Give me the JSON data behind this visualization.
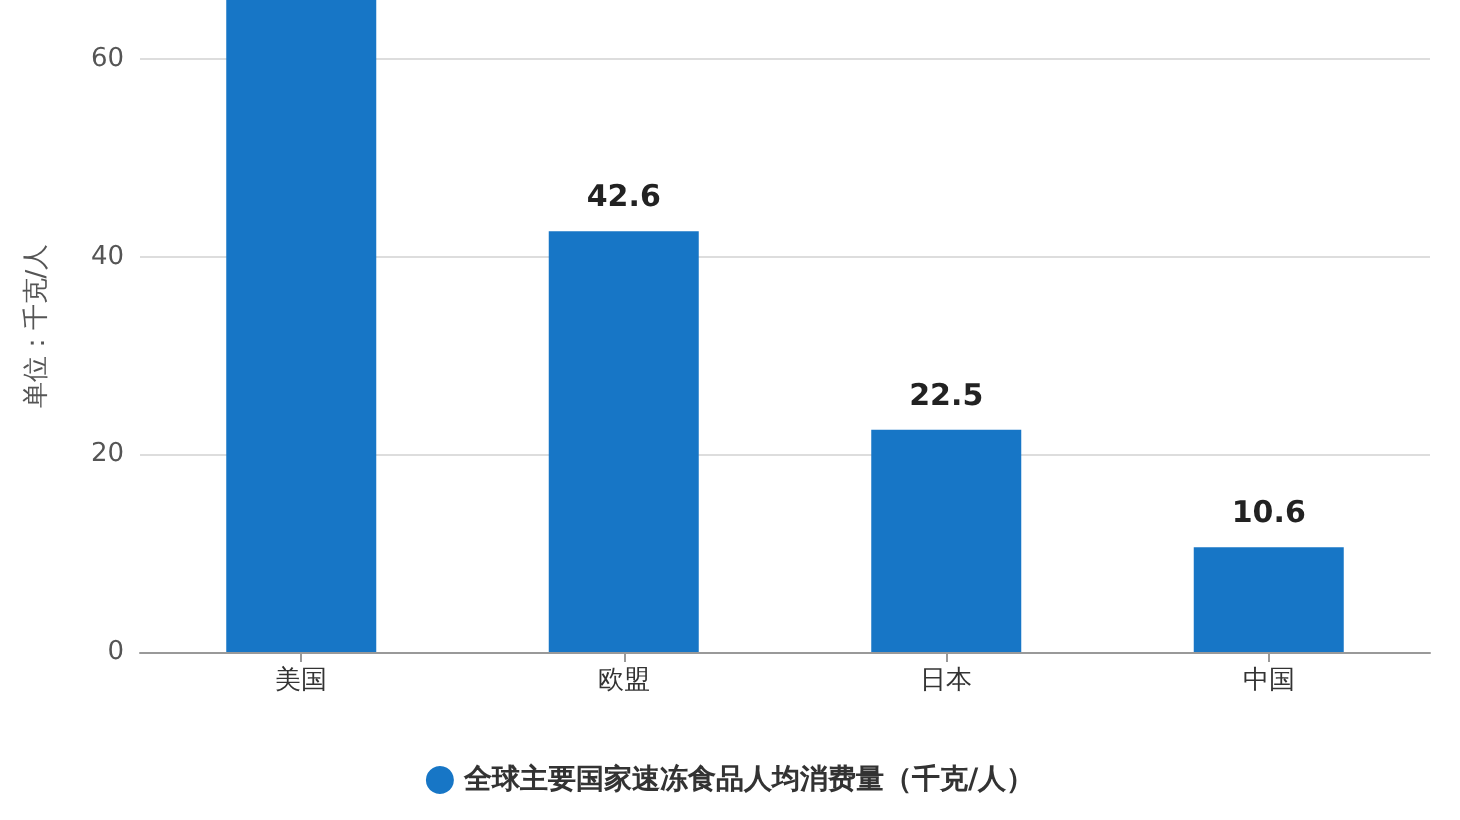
{
  "chart_data": {
    "type": "bar",
    "ylabel": "单位：千克/人",
    "categories": [
      "美国",
      "欧盟",
      "日本",
      "中国"
    ],
    "series": [
      {
        "name": "全球主要国家速冻食品人均消费量（千克/人）",
        "color": "#1776c6",
        "values": [
          66,
          42.6,
          22.5,
          10.6
        ],
        "value_labels": [
          null,
          "42.6",
          "22.5",
          "10.6"
        ]
      }
    ],
    "ylim": [
      0,
      66
    ],
    "yticks": [
      0,
      20,
      40,
      60
    ],
    "grid": "y",
    "legend": "bottom"
  }
}
